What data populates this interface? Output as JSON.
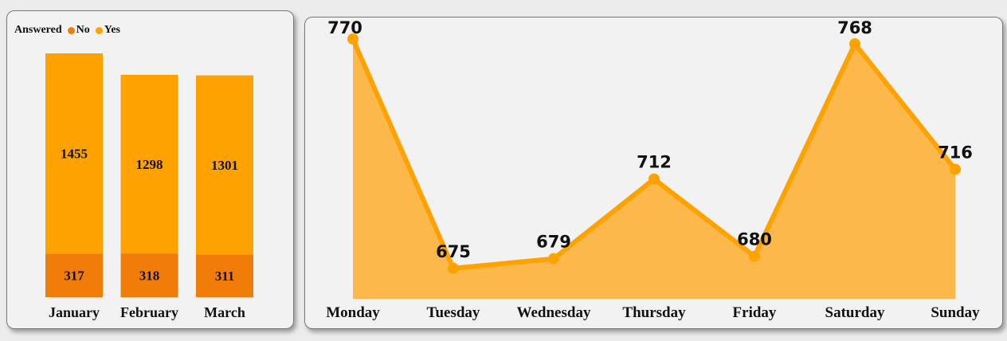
{
  "chart_data": [
    {
      "type": "bar",
      "stacked": true,
      "legend": {
        "title": "Answered",
        "position": "top-left"
      },
      "categories": [
        "January",
        "February",
        "March"
      ],
      "series": [
        {
          "name": "No",
          "color": "#f07c0a",
          "values": [
            317,
            318,
            311
          ]
        },
        {
          "name": "Yes",
          "color": "#fda201",
          "values": [
            1455,
            1298,
            1301
          ]
        }
      ],
      "ylim": [
        0,
        1772
      ],
      "grid": false
    },
    {
      "type": "area",
      "categories": [
        "Monday",
        "Tuesday",
        "Wednesday",
        "Thursday",
        "Friday",
        "Saturday",
        "Sunday"
      ],
      "values": [
        770,
        675,
        679,
        712,
        680,
        768,
        716
      ],
      "line_color": "#fda201",
      "fill_color": "#fcb84a",
      "ylim": [
        668,
        770
      ],
      "grid": false
    }
  ]
}
